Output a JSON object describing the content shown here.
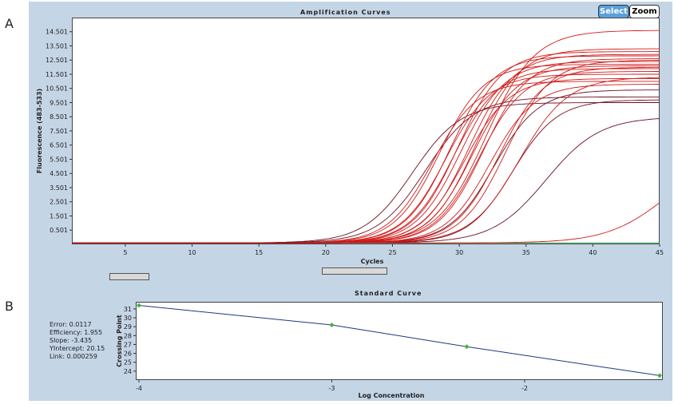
{
  "labels": {
    "a": "A",
    "b": "B"
  },
  "toolbar": {
    "select_label": "Select",
    "zoom_label": "Zoom"
  },
  "stats": {
    "error": "Error: 0.0117",
    "efficiency": "Efficiency: 1.955",
    "slope": "Slope: -3.435",
    "yintercept": "YIntercept: 20.15",
    "link": "Link: 0.000259"
  },
  "colors": {
    "background_panel": "#c4d5e6",
    "curve_red": "#d01a1a",
    "curve_dark": "#6b1020",
    "baseline_green": "#2fa84a",
    "std_line": "#1a3a7a",
    "std_marker": "#4caf3a"
  },
  "chart_data": [
    {
      "type": "line",
      "title": "Amplification Curves",
      "xlabel": "Cycles",
      "ylabel": "Fluorescence (483-533)",
      "xlim": [
        1,
        45
      ],
      "ylim": [
        -0.5,
        15.5
      ],
      "x_ticks": [
        5,
        10,
        15,
        20,
        25,
        30,
        35,
        40,
        45
      ],
      "y_ticks": [
        0.501,
        1.501,
        2.501,
        3.501,
        4.501,
        5.501,
        6.501,
        7.501,
        8.501,
        9.501,
        10.501,
        11.501,
        12.501,
        13.501,
        14.501
      ],
      "y_tick_labels": [
        "0.501",
        "1.501",
        "2.501",
        "3.501",
        "4.501",
        "5.501",
        "6.501",
        "7.501",
        "8.501",
        "9.501",
        "10.501",
        "11.501",
        "12.501",
        "13.501",
        "14.501"
      ],
      "baseline_y": -0.4,
      "series": [
        {
          "color": "dark",
          "midpoint": 26.5,
          "plateau": 9.5,
          "steep": 0.55
        },
        {
          "color": "dark",
          "midpoint": 27.5,
          "plateau": 9.9,
          "steep": 0.55
        },
        {
          "color": "red",
          "midpoint": 28.0,
          "plateau": 11.0,
          "steep": 0.6
        },
        {
          "color": "red",
          "midpoint": 28.5,
          "plateau": 12.2,
          "steep": 0.6
        },
        {
          "color": "red",
          "midpoint": 29.0,
          "plateau": 11.5,
          "steep": 0.6
        },
        {
          "color": "red",
          "midpoint": 29.3,
          "plateau": 12.8,
          "steep": 0.6
        },
        {
          "color": "red",
          "midpoint": 29.6,
          "plateau": 11.9,
          "steep": 0.6
        },
        {
          "color": "red",
          "midpoint": 29.9,
          "plateau": 13.1,
          "steep": 0.6
        },
        {
          "color": "red",
          "midpoint": 30.1,
          "plateau": 12.4,
          "steep": 0.6
        },
        {
          "color": "red",
          "midpoint": 30.4,
          "plateau": 11.2,
          "steep": 0.6
        },
        {
          "color": "red",
          "midpoint": 30.7,
          "plateau": 12.9,
          "steep": 0.6
        },
        {
          "color": "red",
          "midpoint": 31.0,
          "plateau": 12.1,
          "steep": 0.6
        },
        {
          "color": "red",
          "midpoint": 31.2,
          "plateau": 13.3,
          "steep": 0.6
        },
        {
          "color": "red",
          "midpoint": 31.5,
          "plateau": 11.7,
          "steep": 0.6
        },
        {
          "color": "red",
          "midpoint": 31.8,
          "plateau": 12.6,
          "steep": 0.6
        },
        {
          "color": "red",
          "midpoint": 32.0,
          "plateau": 14.6,
          "steep": 0.55
        },
        {
          "color": "red",
          "midpoint": 32.3,
          "plateau": 10.8,
          "steep": 0.6
        },
        {
          "color": "dark",
          "midpoint": 32.6,
          "plateau": 10.4,
          "steep": 0.6
        },
        {
          "color": "red",
          "midpoint": 33.0,
          "plateau": 12.0,
          "steep": 0.6
        },
        {
          "color": "red",
          "midpoint": 33.5,
          "plateau": 12.5,
          "steep": 0.6
        },
        {
          "color": "dark",
          "midpoint": 34.0,
          "plateau": 9.7,
          "steep": 0.6
        },
        {
          "color": "red",
          "midpoint": 34.5,
          "plateau": 11.3,
          "steep": 0.55
        },
        {
          "color": "dark",
          "midpoint": 36.5,
          "plateau": 8.5,
          "steep": 0.5
        },
        {
          "color": "red",
          "midpoint": 45.5,
          "plateau": 6.0,
          "steep": 0.45
        }
      ]
    },
    {
      "type": "scatter",
      "title": "Standard Curve",
      "xlabel": "Log Concentration",
      "ylabel": "Crossing Point",
      "xlim": [
        -4.0,
        -1.3
      ],
      "ylim": [
        23,
        31.8
      ],
      "x_ticks": [
        -4,
        -3,
        -2
      ],
      "y_ticks": [
        24,
        25,
        26,
        27,
        28,
        29,
        30,
        31
      ],
      "points": [
        {
          "x": -4.0,
          "y": 31.4
        },
        {
          "x": -3.0,
          "y": 29.2
        },
        {
          "x": -2.3,
          "y": 26.75
        },
        {
          "x": -1.3,
          "y": 23.5
        }
      ],
      "fit": {
        "slope": -3.435,
        "intercept": 20.15
      }
    }
  ]
}
